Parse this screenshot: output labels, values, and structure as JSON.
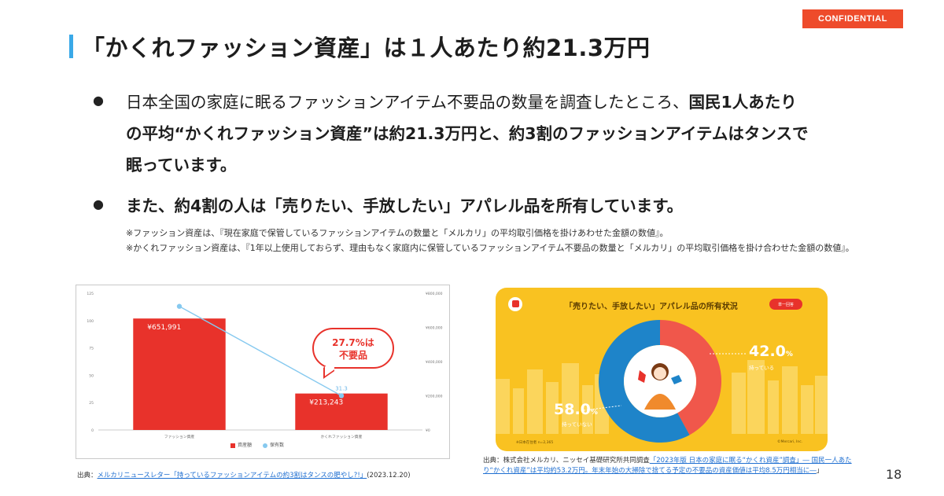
{
  "badge": "CONFIDENTIAL",
  "title": "「かくれファッション資産」は１人あたり約21.3万円",
  "bullets": {
    "b1_pre": "日本全国の家庭に眠るファッションアイテム不要品の数量を調査したところ、",
    "b1_bold": "国民1人あたりの平均“かくれファッション資産”は約21.3万円と、約3割のファッションアイテムはタンスで眠っています。",
    "b2": "また、約4割の人は「売りたい、手放したい」アパレル品を所有しています。",
    "marker": "●"
  },
  "notes": {
    "n1": "※ファッション資産は、『現在家庭で保管しているファッションアイテムの数量と「メルカリ」の平均取引価格を掛けあわせた金額の数値』。",
    "n2": "※かくれファッション資産は、『1年以上使用しておらず、理由もなく家庭内に保管しているファッションアイテム不要品の数量と「メルカリ」の平均取引価格を掛け合わせた金額の数値』。"
  },
  "chart_data": [
    {
      "type": "bar",
      "categories": [
        "ファッション資産",
        "かくれファッション資産"
      ],
      "series": [
        {
          "name": "資産額",
          "values": [
            651991,
            213243
          ],
          "labels": [
            "¥651,991",
            "¥213,243"
          ],
          "color": "#e8322b"
        },
        {
          "name": "保有数",
          "values": [
            113,
            31.3
          ],
          "color": "#86c9ef"
        }
      ],
      "yticks_left": [
        "125",
        "100",
        "75",
        "50",
        "25",
        "0"
      ],
      "yticks_right": [
        "¥800,000",
        "¥600,000",
        "¥400,000",
        "¥200,000",
        "¥0"
      ],
      "ylim_left": [
        0,
        125
      ],
      "ylim_right": [
        0,
        800000
      ],
      "point_label": "31.3",
      "annotation": "27.7%は不要品",
      "annotation_line1": "27.7%は",
      "annotation_line2": "不要品",
      "legend": [
        "資産額",
        "保有数"
      ]
    },
    {
      "type": "pie",
      "title": "「売りたい、手放したい」アパレル品の所有状況",
      "badge": "単一回答",
      "slices": [
        {
          "name": "持っている",
          "value": 42.0,
          "color": "#f0574b"
        },
        {
          "name": "持っていない",
          "value": 58.0,
          "color": "#1e84c9"
        }
      ],
      "labels": {
        "p1": "42.0",
        "p1_sub": "持っている",
        "p2": "58.0",
        "p2_sub": "持っていない",
        "unit": "%"
      },
      "foot_left": "※日本在住者 n=2,365",
      "foot_right": "©Mercari, Inc."
    }
  ],
  "sources": {
    "left_prefix": "出典：",
    "left_link": "メルカリニュースレター「持っているファッションアイテムの約3割はタンスの肥やし?!」",
    "left_suffix": "(2023.12.20)",
    "right_prefix": "出典：株式会社メルカリ、ニッセイ基礎研究所共同調査",
    "right_link": "「2023年版 日本の家庭に眠る“かくれ資産”調査」― 国民一人あたり“かくれ資産”は平均約53.2万円。年末年始の大掃除で捨てる予定の不要品の資産価値は平均8.5万円相当に―",
    "right_suffix": "」"
  },
  "page_number": "18"
}
